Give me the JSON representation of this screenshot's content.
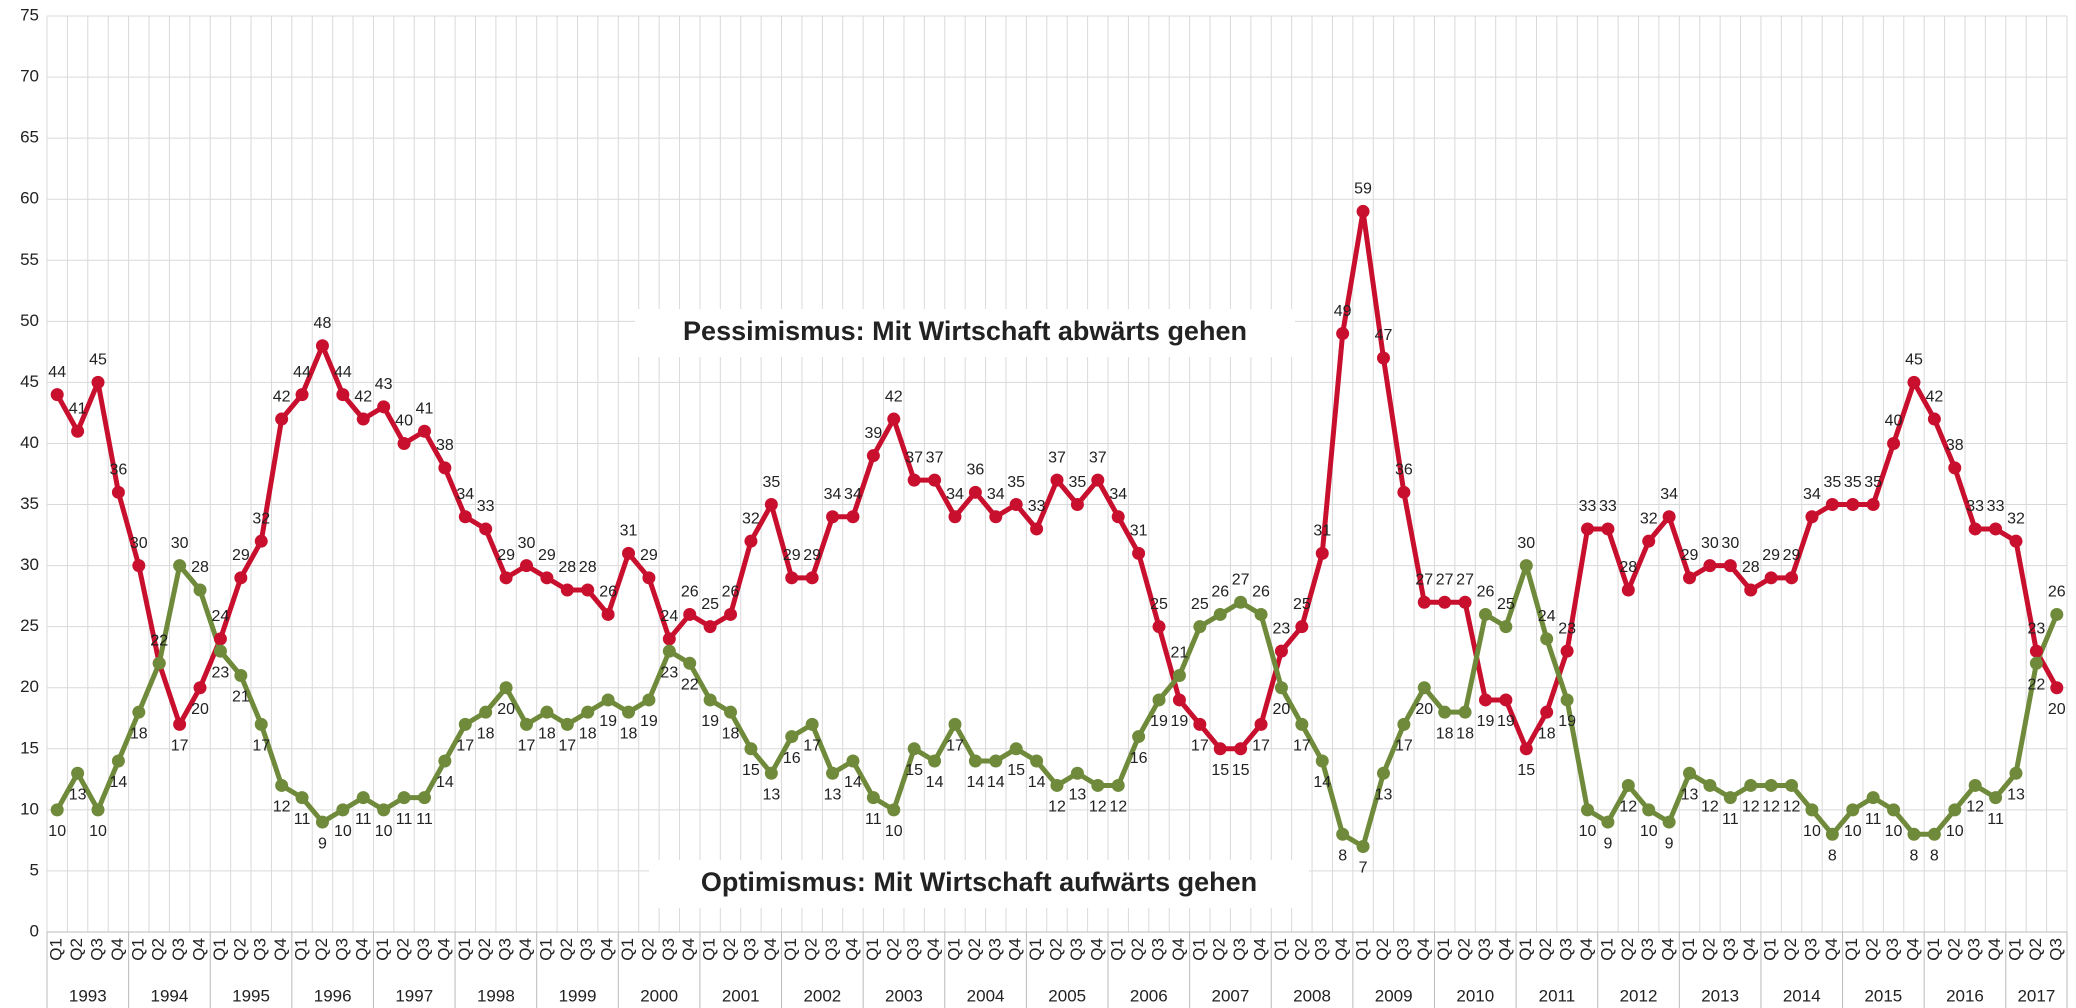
{
  "chart_data": {
    "type": "line",
    "categories": [
      "Q1",
      "Q2",
      "Q3",
      "Q4",
      "Q1",
      "Q2",
      "Q3",
      "Q4",
      "Q1",
      "Q2",
      "Q3",
      "Q4",
      "Q1",
      "Q2",
      "Q3",
      "Q4",
      "Q1",
      "Q2",
      "Q3",
      "Q4",
      "Q1",
      "Q2",
      "Q3",
      "Q4",
      "Q1",
      "Q2",
      "Q3",
      "Q4",
      "Q1",
      "Q2",
      "Q3",
      "Q4",
      "Q1",
      "Q2",
      "Q3",
      "Q4",
      "Q1",
      "Q2",
      "Q3",
      "Q4",
      "Q1",
      "Q2",
      "Q3",
      "Q4",
      "Q1",
      "Q2",
      "Q3",
      "Q4",
      "Q1",
      "Q2",
      "Q3",
      "Q4",
      "Q1",
      "Q2",
      "Q3",
      "Q4",
      "Q1",
      "Q2",
      "Q3",
      "Q4",
      "Q1",
      "Q2",
      "Q3",
      "Q4",
      "Q1",
      "Q2",
      "Q3",
      "Q4",
      "Q1",
      "Q2",
      "Q3",
      "Q4",
      "Q1",
      "Q2",
      "Q3",
      "Q4",
      "Q1",
      "Q2",
      "Q3",
      "Q4",
      "Q1",
      "Q2",
      "Q3",
      "Q4",
      "Q1",
      "Q2",
      "Q3",
      "Q4",
      "Q1",
      "Q2",
      "Q3",
      "Q4",
      "Q1",
      "Q2",
      "Q3",
      "Q4",
      "Q1",
      "Q2",
      "Q3"
    ],
    "years": [
      "1993",
      "1994",
      "1995",
      "1996",
      "1997",
      "1998",
      "1999",
      "2000",
      "2001",
      "2002",
      "2003",
      "2004",
      "2005",
      "2006",
      "2007",
      "2008",
      "2009",
      "2010",
      "2011",
      "2012",
      "2013",
      "2014",
      "2015",
      "2016",
      "2017"
    ],
    "series": [
      {
        "name": "Pessimismus: Mit Wirtschaft abwärts gehen",
        "color": "#c8102e",
        "values": [
          44,
          41,
          45,
          36,
          30,
          22,
          17,
          20,
          24,
          29,
          32,
          42,
          44,
          48,
          44,
          42,
          43,
          40,
          41,
          38,
          34,
          33,
          29,
          30,
          29,
          28,
          28,
          26,
          31,
          29,
          24,
          26,
          25,
          26,
          32,
          35,
          29,
          29,
          34,
          34,
          39,
          42,
          37,
          37,
          34,
          36,
          34,
          35,
          33,
          37,
          35,
          37,
          34,
          31,
          25,
          19,
          17,
          15,
          15,
          17,
          23,
          25,
          31,
          49,
          59,
          47,
          36,
          27,
          27,
          27,
          19,
          19,
          15,
          18,
          23,
          33,
          33,
          28,
          32,
          34,
          29,
          30,
          30,
          28,
          29,
          29,
          34,
          35,
          35,
          35,
          40,
          45,
          42,
          38,
          33,
          33,
          32,
          23,
          20
        ]
      },
      {
        "name": "Optimismus: Mit Wirtschaft aufwärts gehen",
        "color": "#6f8a3a",
        "values": [
          10,
          13,
          10,
          14,
          18,
          22,
          30,
          28,
          23,
          21,
          17,
          12,
          11,
          9,
          10,
          11,
          10,
          11,
          11,
          14,
          17,
          18,
          20,
          17,
          18,
          17,
          18,
          19,
          18,
          19,
          23,
          22,
          19,
          18,
          15,
          13,
          16,
          17,
          13,
          14,
          11,
          10,
          15,
          14,
          17,
          14,
          14,
          15,
          14,
          12,
          13,
          12,
          12,
          16,
          19,
          21,
          25,
          26,
          27,
          26,
          20,
          17,
          14,
          8,
          7,
          13,
          17,
          20,
          18,
          18,
          26,
          25,
          30,
          24,
          19,
          10,
          9,
          12,
          10,
          9,
          13,
          12,
          11,
          12,
          12,
          12,
          10,
          8,
          10,
          11,
          10,
          8,
          8,
          10,
          12,
          11,
          13,
          22,
          26
        ]
      }
    ],
    "ylim": [
      0,
      75
    ],
    "yticks": [
      0,
      5,
      10,
      15,
      20,
      25,
      30,
      35,
      40,
      45,
      50,
      55,
      60,
      65,
      70,
      75
    ],
    "grid": true
  }
}
